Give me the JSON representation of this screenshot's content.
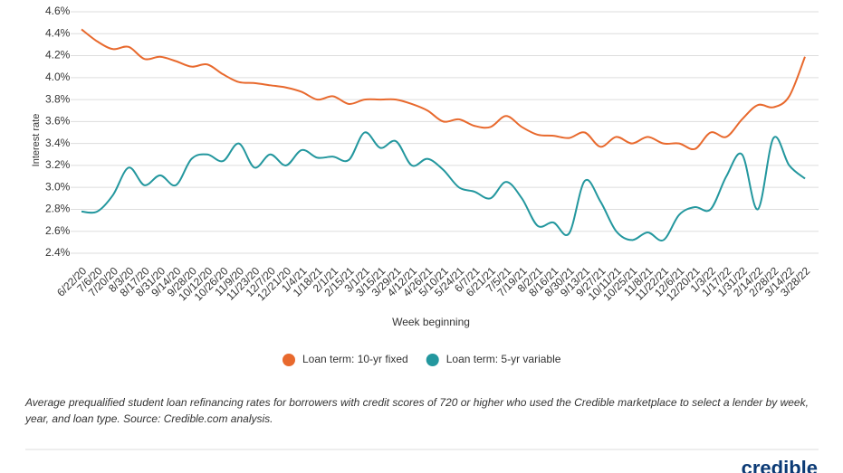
{
  "chart_data": {
    "type": "line",
    "y_label": "Interest rate",
    "x_label": "Week beginning",
    "categories": [
      "6/22/20",
      "7/6/20",
      "7/20/20",
      "8/3/20",
      "8/17/20",
      "8/31/20",
      "9/14/20",
      "9/28/20",
      "10/12/20",
      "10/26/20",
      "11/9/20",
      "11/23/20",
      "12/7/20",
      "12/21/20",
      "1/4/21",
      "1/18/21",
      "2/1/21",
      "2/15/21",
      "3/1/21",
      "3/15/21",
      "3/29/21",
      "4/12/21",
      "4/26/21",
      "5/10/21",
      "5/24/21",
      "6/7/21",
      "6/21/21",
      "7/5/21",
      "7/19/21",
      "8/2/21",
      "8/16/21",
      "8/30/21",
      "9/13/21",
      "9/27/21",
      "10/11/21",
      "10/25/21",
      "11/8/21",
      "11/22/21",
      "12/6/21",
      "12/20/21",
      "1/3/22",
      "1/17/22",
      "1/31/22",
      "2/14/22",
      "2/28/22",
      "3/14/22",
      "3/28/22"
    ],
    "series": [
      {
        "name": "Loan term: 10-yr fixed",
        "color": "#e8692d",
        "values": [
          4.44,
          4.33,
          4.26,
          4.28,
          4.17,
          4.19,
          4.15,
          4.1,
          4.12,
          4.03,
          3.96,
          3.95,
          3.93,
          3.91,
          3.87,
          3.8,
          3.83,
          3.76,
          3.8,
          3.8,
          3.8,
          3.76,
          3.7,
          3.6,
          3.62,
          3.56,
          3.55,
          3.65,
          3.55,
          3.48,
          3.47,
          3.45,
          3.5,
          3.37,
          3.46,
          3.4,
          3.46,
          3.4,
          3.4,
          3.35,
          3.5,
          3.46,
          3.62,
          3.75,
          3.73,
          3.83,
          4.19
        ]
      },
      {
        "name": "Loan term: 5-yr variable",
        "color": "#23979e",
        "values": [
          2.78,
          2.78,
          2.93,
          3.18,
          3.02,
          3.11,
          3.02,
          3.26,
          3.3,
          3.24,
          3.4,
          3.18,
          3.3,
          3.2,
          3.34,
          3.27,
          3.28,
          3.25,
          3.5,
          3.36,
          3.42,
          3.2,
          3.26,
          3.16,
          3.0,
          2.96,
          2.9,
          3.05,
          2.9,
          2.65,
          2.68,
          2.58,
          3.06,
          2.87,
          2.6,
          2.52,
          2.59,
          2.52,
          2.75,
          2.82,
          2.8,
          3.1,
          3.3,
          2.8,
          3.45,
          3.2,
          3.08
        ]
      }
    ],
    "ylim": [
      2.4,
      4.6
    ],
    "yticks": [
      {
        "value": 2.4,
        "label": "2.4%"
      },
      {
        "value": 2.6,
        "label": "2.6%"
      },
      {
        "value": 2.8,
        "label": "2.8%"
      },
      {
        "value": 3.0,
        "label": "3.0%"
      },
      {
        "value": 3.2,
        "label": "3.2%"
      },
      {
        "value": 3.4,
        "label": "3.4%"
      },
      {
        "value": 3.6,
        "label": "3.6%"
      },
      {
        "value": 3.8,
        "label": "3.8%"
      },
      {
        "value": 4.0,
        "label": "4.0%"
      },
      {
        "value": 4.2,
        "label": "4.2%"
      },
      {
        "value": 4.4,
        "label": "4.4%"
      },
      {
        "value": 4.6,
        "label": "4.6%"
      }
    ],
    "grid": true,
    "caption": "Average prequalified student loan refinancing rates for borrowers with credit scores of 720 or higher who used the Credible marketplace to select a lender by week, year, and loan type. Source: Credible.com analysis.",
    "logo": "credible"
  }
}
